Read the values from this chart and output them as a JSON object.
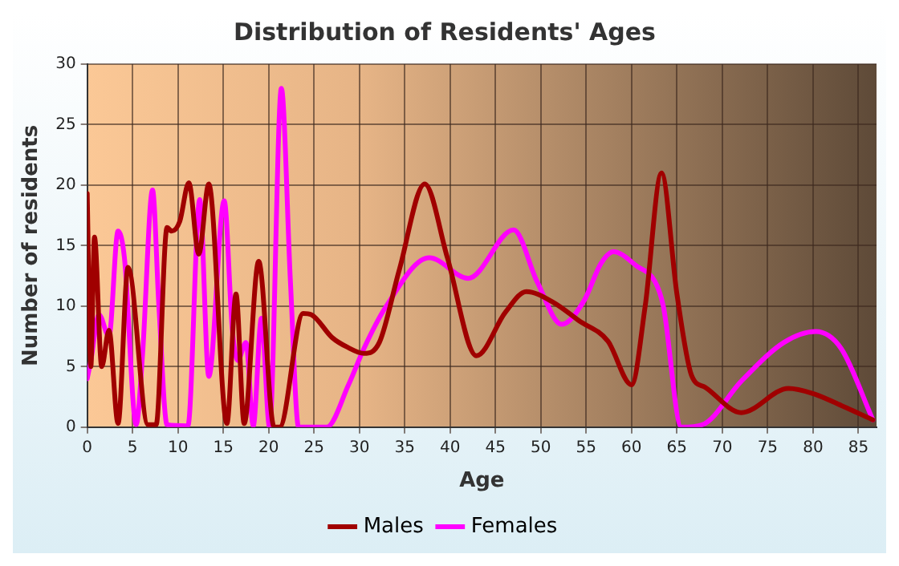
{
  "chart_data": {
    "type": "line",
    "title": "Distribution of Residents' Ages",
    "xlabel": "Age",
    "ylabel": "Number of residents",
    "xlim": [
      0,
      87
    ],
    "xticks": [
      0,
      5,
      10,
      15,
      20,
      25,
      30,
      35,
      40,
      45,
      50,
      55,
      60,
      65,
      70,
      75,
      80,
      85
    ],
    "ylim": [
      0,
      30
    ],
    "yticks": [
      0,
      5,
      10,
      15,
      20,
      25,
      30
    ],
    "grid": true,
    "legend": "bottom",
    "marker": "none",
    "line_style": "solid",
    "series": [
      {
        "name": "Males",
        "color": "#a00000",
        "x": [
          0,
          0.4,
          0.8,
          1.6,
          2.4,
          3.4,
          4.5,
          6.7,
          7.6,
          8.8,
          9.3,
          10.2,
          11.2,
          12.3,
          13.4,
          15.4,
          16.4,
          17.3,
          18.9,
          20.6,
          21.2,
          23.8,
          24.7,
          27,
          28.7,
          30.5,
          32.2,
          34.4,
          37.2,
          39.7,
          42.9,
          46.1,
          48.4,
          51.4,
          54.2,
          57.4,
          60,
          61.5,
          63.3,
          65,
          66.6,
          68.1,
          72.1,
          77.3,
          79.9,
          83.1,
          86.6
        ],
        "values": [
          19.3,
          5,
          15.7,
          5,
          8,
          0.3,
          13.2,
          0.2,
          0.2,
          16.5,
          16.2,
          17,
          20.2,
          14.3,
          20.1,
          0.3,
          11,
          0.3,
          13.7,
          0,
          0,
          9.4,
          9.3,
          7.4,
          6.6,
          6.1,
          7,
          13,
          20.1,
          14,
          5.9,
          9.5,
          11.2,
          10.3,
          8.8,
          7.1,
          3.5,
          10,
          21,
          11,
          4.3,
          3.3,
          1.2,
          3.2,
          2.8,
          1.8,
          0.6
        ]
      },
      {
        "name": "Females",
        "color": "#ff00ff",
        "x": [
          0,
          0.4,
          1.3,
          2.4,
          3.4,
          4.1,
          5.4,
          6.1,
          7.2,
          7.9,
          8.8,
          11.1,
          12.4,
          13.4,
          15.1,
          16,
          16.6,
          17.5,
          18.3,
          19.2,
          20.1,
          21.4,
          22.4,
          23.3,
          26.4,
          28.8,
          30.5,
          32.8,
          37.7,
          42,
          47,
          49.6,
          52.3,
          54.8,
          56.6,
          58,
          60.6,
          62.6,
          63.5,
          65.5,
          67.8,
          72.1,
          76.8,
          80.3,
          83.1,
          86.6
        ],
        "values": [
          4,
          5.5,
          9.3,
          7.5,
          16.2,
          14,
          0.2,
          6,
          19.6,
          10,
          0.2,
          0.1,
          18.8,
          4.2,
          18.7,
          8,
          5.5,
          7,
          0.1,
          9,
          0,
          28,
          12,
          0,
          0,
          3.5,
          6.5,
          9.8,
          14,
          12.3,
          16.3,
          12,
          8.5,
          10.5,
          13.5,
          14.5,
          13.3,
          12,
          10,
          0,
          0.2,
          3.8,
          7,
          7.9,
          6.5,
          0.6
        ]
      }
    ]
  }
}
